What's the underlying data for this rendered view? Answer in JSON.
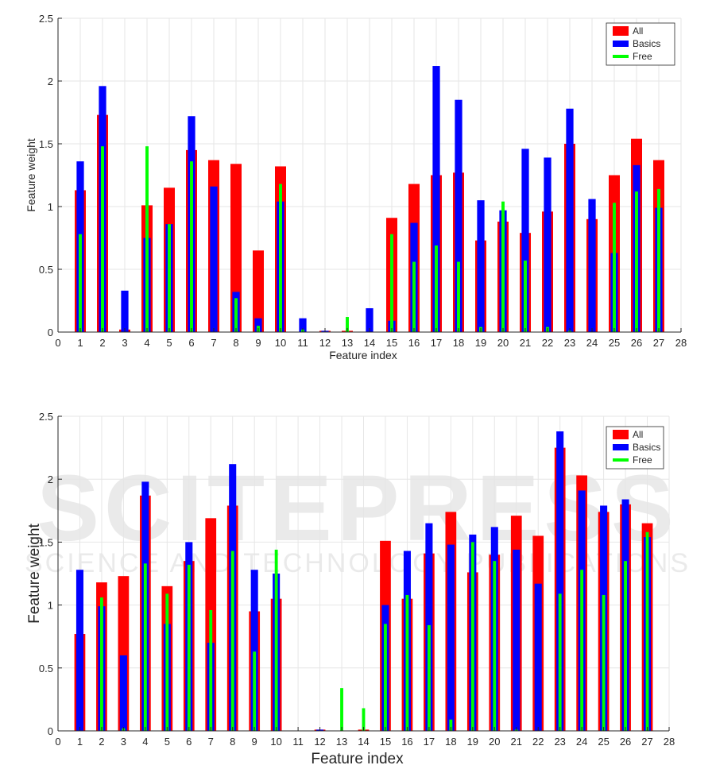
{
  "watermark": {
    "line1": "SCITEPRESS",
    "line2": "SCIENCE AND TECHNOLOGY PUBLICATIONS"
  },
  "colors": {
    "All": "#ff0000",
    "Basics": "#0000ff",
    "Free": "#00ff00"
  },
  "chart_data": [
    {
      "type": "bar",
      "xlabel": "Feature index",
      "ylabel": "Feature weight",
      "xlim": [
        0,
        28
      ],
      "ylim": [
        0,
        2.5
      ],
      "xticks": [
        "0",
        "1",
        "2",
        "3",
        "4",
        "5",
        "6",
        "7",
        "8",
        "9",
        "10",
        "11",
        "12",
        "13",
        "14",
        "15",
        "16",
        "17",
        "18",
        "19",
        "20",
        "21",
        "22",
        "23",
        "24",
        "25",
        "26",
        "27",
        "28"
      ],
      "yticks": [
        "0",
        "0.5",
        "1",
        "1.5",
        "2",
        "2.5"
      ],
      "grid": true,
      "legend": "top-right",
      "categories": [
        1,
        2,
        3,
        4,
        5,
        6,
        7,
        8,
        9,
        10,
        11,
        12,
        13,
        14,
        15,
        16,
        17,
        18,
        19,
        20,
        21,
        22,
        23,
        24,
        25,
        26,
        27
      ],
      "series": [
        {
          "name": "All",
          "values": [
            1.13,
            1.73,
            0.02,
            1.01,
            1.15,
            1.45,
            1.37,
            1.34,
            0.65,
            1.32,
            0,
            0.01,
            0.01,
            0,
            0.91,
            1.18,
            1.25,
            1.27,
            0.73,
            0.88,
            0.79,
            0.96,
            1.5,
            0.9,
            1.25,
            1.54,
            1.37
          ]
        },
        {
          "name": "Basics",
          "values": [
            1.36,
            1.96,
            0.33,
            0.75,
            0.86,
            1.72,
            1.16,
            0.32,
            0.11,
            1.04,
            0.11,
            0.01,
            0,
            0.19,
            0.09,
            0.87,
            2.12,
            1.85,
            1.05,
            0.97,
            1.46,
            1.39,
            1.78,
            1.06,
            0.63,
            1.33,
            0.99
          ]
        },
        {
          "name": "Free",
          "values": [
            0.78,
            1.48,
            0,
            1.48,
            0.86,
            1.36,
            0,
            0.27,
            0.05,
            1.18,
            0.02,
            0,
            0.12,
            0,
            0.78,
            0.56,
            0.69,
            0.56,
            0.04,
            1.04,
            0.57,
            0.04,
            0.01,
            0,
            1.03,
            1.12,
            1.14
          ]
        }
      ]
    },
    {
      "type": "bar",
      "xlabel": "Feature index",
      "ylabel": "Feature weight",
      "xlim": [
        0,
        28
      ],
      "ylim": [
        0,
        2.5
      ],
      "xticks": [
        "0",
        "1",
        "2",
        "3",
        "4",
        "5",
        "6",
        "7",
        "8",
        "9",
        "10",
        "11",
        "12",
        "13",
        "14",
        "15",
        "16",
        "17",
        "18",
        "19",
        "20",
        "21",
        "22",
        "23",
        "24",
        "25",
        "26",
        "27",
        "28"
      ],
      "yticks": [
        "0",
        "0.5",
        "1",
        "1.5",
        "2",
        "2.5"
      ],
      "grid": true,
      "legend": "top-right",
      "categories": [
        1,
        2,
        3,
        4,
        5,
        6,
        7,
        8,
        9,
        10,
        11,
        12,
        13,
        14,
        15,
        16,
        17,
        18,
        19,
        20,
        21,
        22,
        23,
        24,
        25,
        26,
        27
      ],
      "series": [
        {
          "name": "All",
          "values": [
            0.77,
            1.18,
            1.23,
            1.87,
            1.15,
            1.35,
            1.69,
            1.79,
            0.95,
            1.05,
            0,
            0.01,
            0,
            0.01,
            1.51,
            1.05,
            1.41,
            1.74,
            1.26,
            1.4,
            1.71,
            1.55,
            2.25,
            2.03,
            1.74,
            1.8,
            1.65
          ]
        },
        {
          "name": "Basics",
          "values": [
            1.28,
            0.99,
            0.6,
            1.98,
            0.85,
            1.5,
            0.7,
            2.12,
            1.28,
            1.25,
            0,
            0.01,
            0,
            0,
            1.0,
            1.43,
            1.65,
            1.48,
            1.56,
            1.62,
            1.44,
            1.17,
            2.38,
            1.91,
            1.79,
            1.84,
            1.54
          ]
        },
        {
          "name": "Free",
          "values": [
            0,
            1.06,
            0.02,
            1.33,
            1.09,
            1.32,
            0.96,
            1.43,
            0.63,
            1.44,
            0,
            0,
            0.34,
            0.18,
            0.85,
            1.08,
            0.84,
            0.09,
            1.5,
            1.35,
            0.01,
            0,
            1.09,
            1.28,
            1.08,
            1.35,
            1.58
          ]
        }
      ]
    }
  ]
}
